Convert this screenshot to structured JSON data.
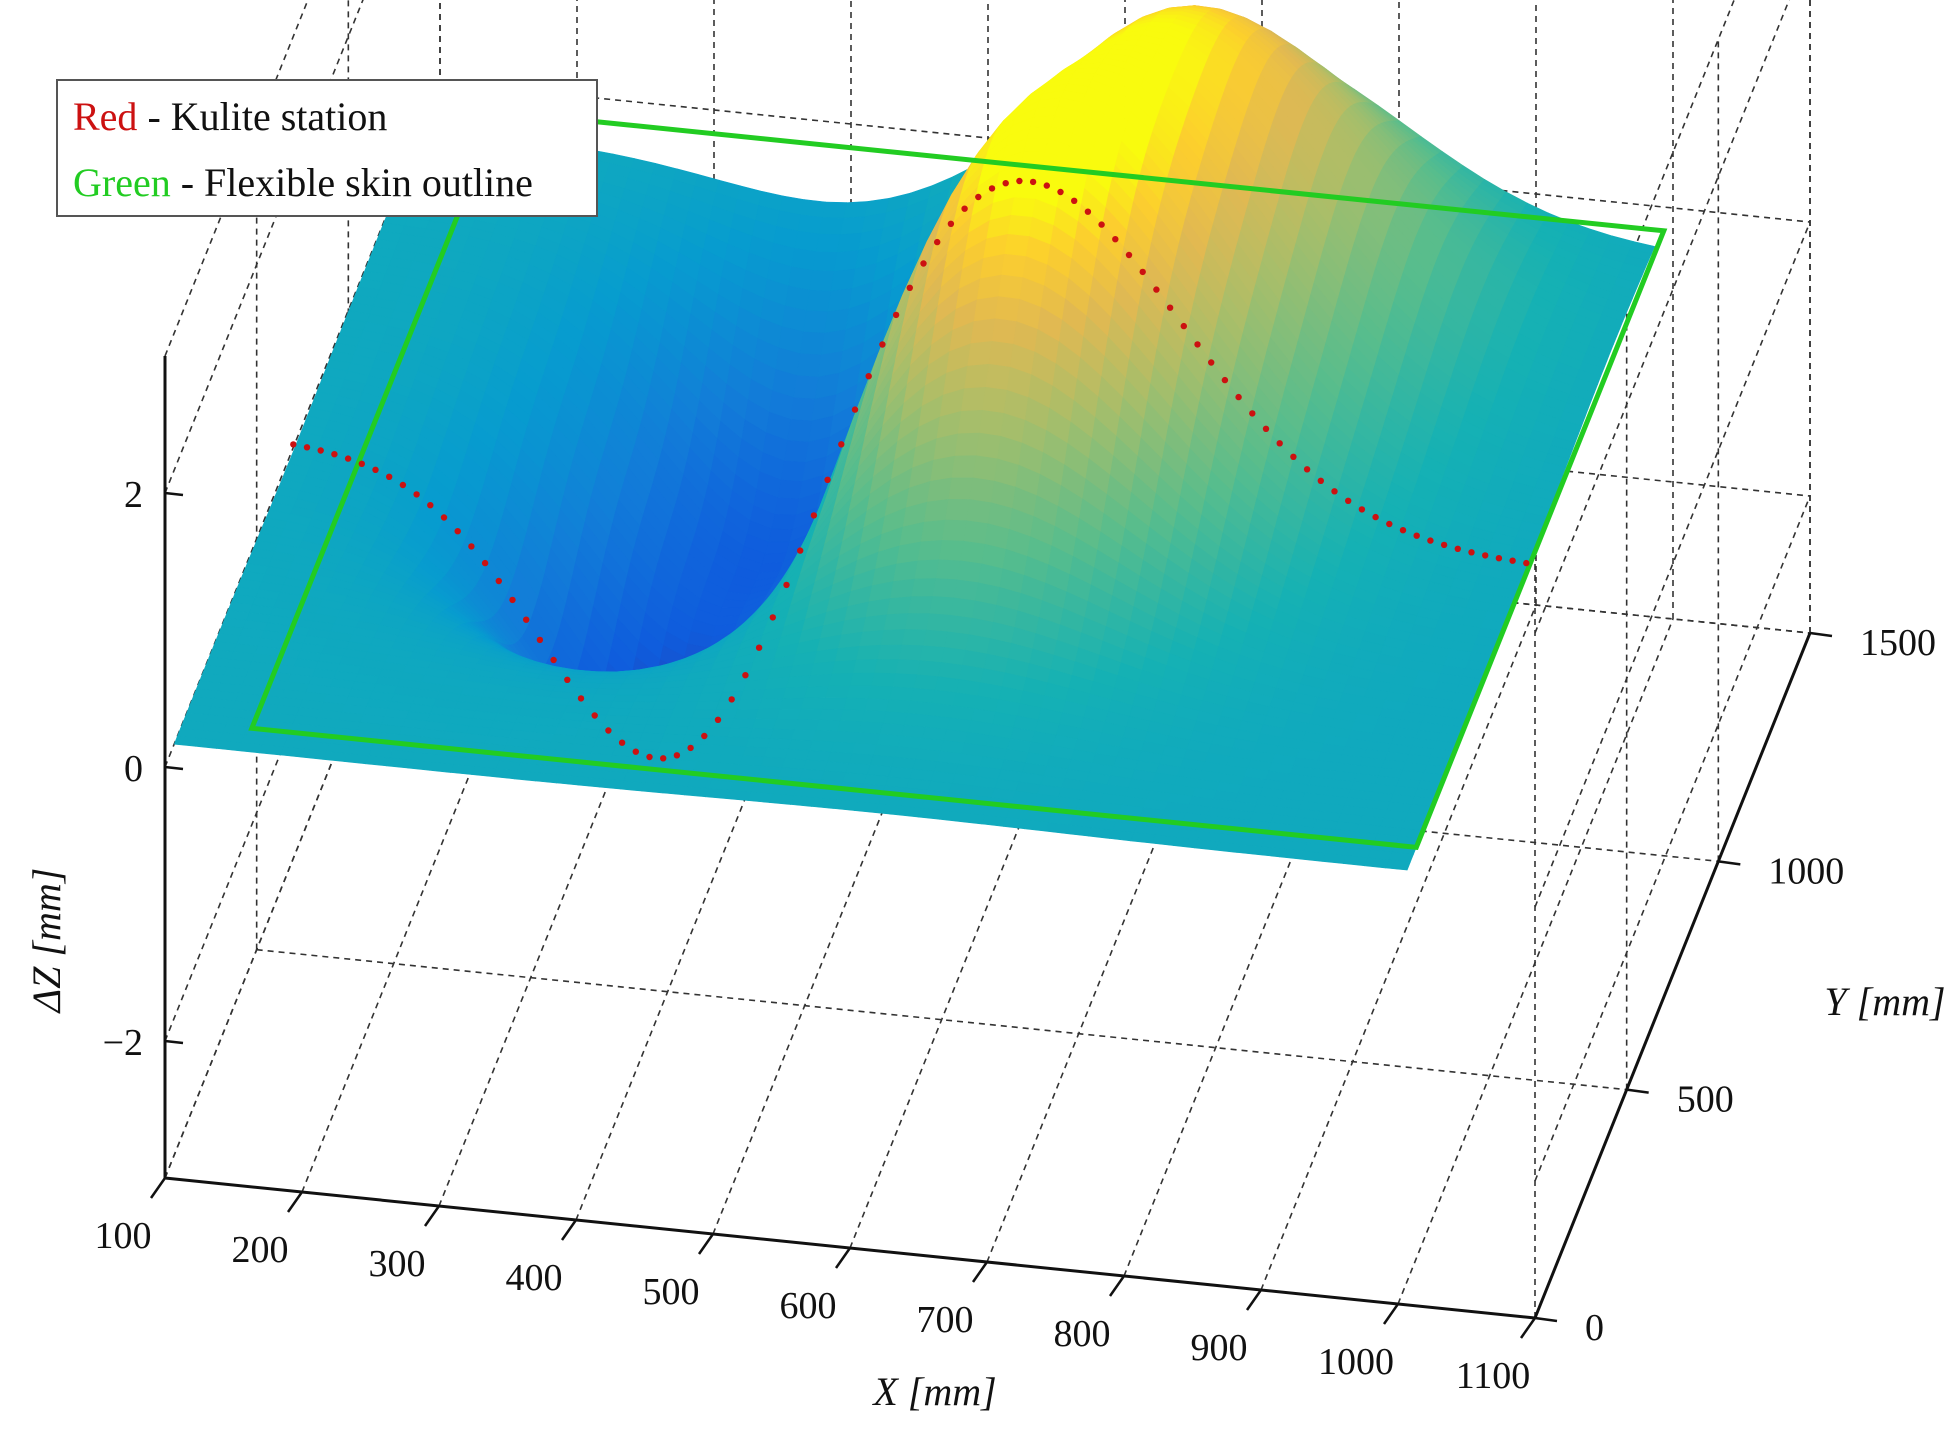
{
  "chart_data": {
    "type": "scatter",
    "subtype": "3d-surface-points",
    "title": "",
    "xlabel": "X [mm]",
    "ylabel": "Y [mm]",
    "zlabel": "ΔZ [mm]",
    "xlim": [
      100,
      1100
    ],
    "ylim": [
      0,
      1500
    ],
    "zlim": [
      -3,
      3
    ],
    "x_ticks": [
      "100",
      "200",
      "300",
      "400",
      "500",
      "600",
      "700",
      "800",
      "900",
      "1000",
      "1100"
    ],
    "y_ticks": [
      "0",
      "500",
      "1000",
      "1500"
    ],
    "z_ticks": [
      "−2",
      "0",
      "2"
    ],
    "grid": true,
    "colormap": "parula",
    "legend": {
      "placement": "top-left",
      "entries": [
        {
          "key": "Red",
          "key_color": "#cc1111",
          "text": " - Kulite station"
        },
        {
          "key": "Green",
          "key_color": "#22cc22",
          "text": " - Flexible skin outline"
        }
      ]
    },
    "surface": {
      "x_range": [
        100,
        1000
      ],
      "y_range": [
        50,
        1400
      ],
      "features": [
        {
          "kind": "dip",
          "x": 380,
          "y": 700,
          "dz": -2.2
        },
        {
          "kind": "dip",
          "x": 420,
          "y": 1080,
          "dz": -1.8
        },
        {
          "kind": "bump",
          "x": 620,
          "y": 750,
          "dz": 2.4
        },
        {
          "kind": "bump",
          "x": 700,
          "y": 1180,
          "dz": 1.9
        }
      ]
    },
    "series": [
      {
        "name": "Kulite station",
        "color": "#cc1111",
        "y": 700,
        "x_range": [
          100,
          1000
        ]
      },
      {
        "name": "Flexible skin outline",
        "color": "#22cc22",
        "x_range": [
          150,
          1000
        ],
        "y_range": [
          100,
          1450
        ],
        "z": 0
      }
    ]
  }
}
